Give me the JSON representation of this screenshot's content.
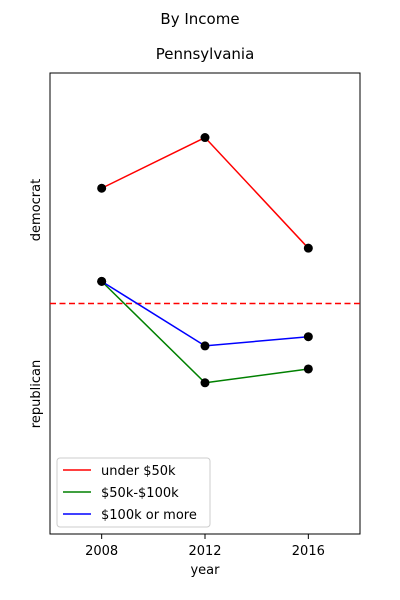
{
  "chart_data": {
    "type": "line",
    "suptitle": "By Income",
    "title": "Pennsylvania",
    "xlabel": "year",
    "x": [
      2008,
      2012,
      2016
    ],
    "xticks": [
      "2008",
      "2012",
      "2016"
    ],
    "xlim": [
      2006,
      2018
    ],
    "ylim": [
      -0.25,
      0.25
    ],
    "y_category_labels": {
      "upper": "democrat",
      "lower": "republican"
    },
    "reference_line": {
      "y": 0,
      "color": "#ff0000",
      "style": "dashed"
    },
    "marker_color": "#000000",
    "series": [
      {
        "name": "under $50k",
        "color": "#ff0000",
        "values": [
          0.125,
          0.18,
          0.06
        ]
      },
      {
        "name": "$50k-$100k",
        "color": "#008000",
        "values": [
          0.024,
          -0.086,
          -0.071
        ]
      },
      {
        "name": "$100k or more",
        "color": "#0000ff",
        "values": [
          0.024,
          -0.046,
          -0.036
        ]
      }
    ],
    "legend_position": "lower-left",
    "grid": false
  }
}
